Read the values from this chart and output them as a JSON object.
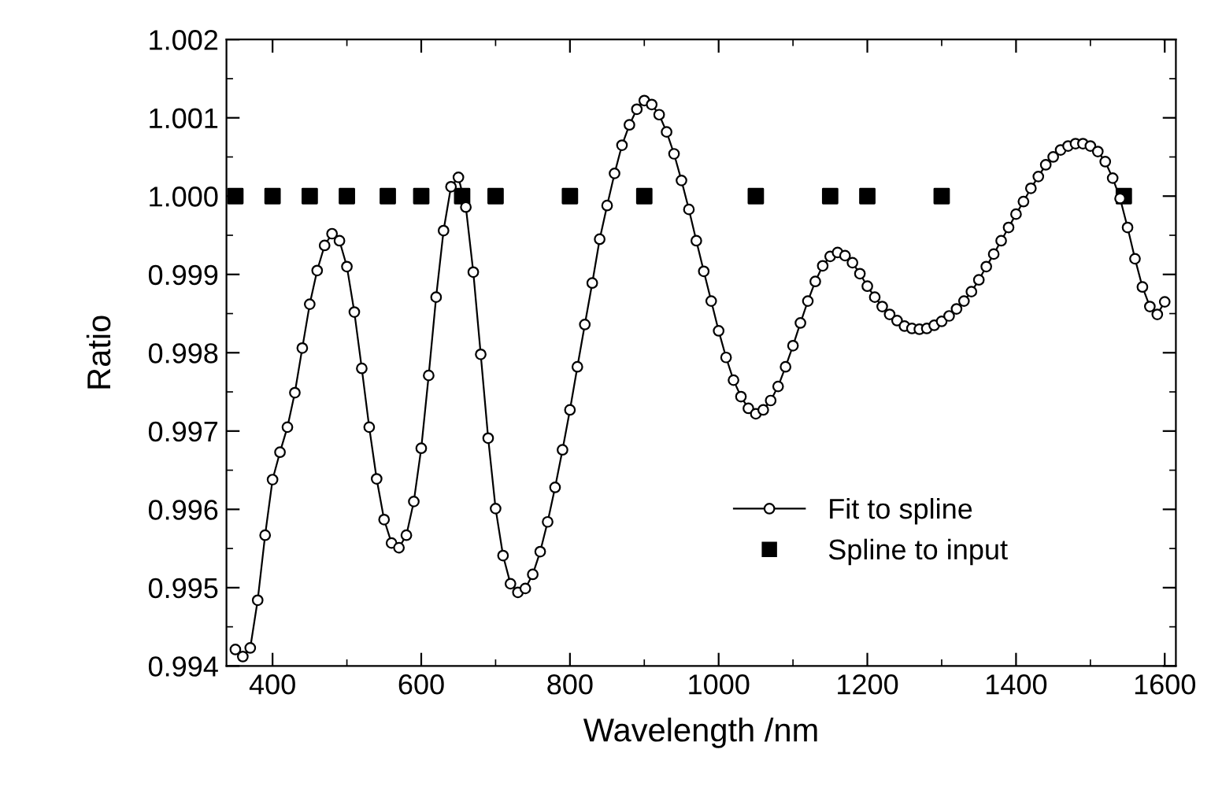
{
  "chart_data": {
    "type": "line",
    "xlabel": "Wavelength /nm",
    "ylabel": "Ratio",
    "xlim": [
      338,
      1615
    ],
    "ylim": [
      0.994,
      1.002
    ],
    "xticks": [
      400,
      600,
      800,
      1000,
      1200,
      1400,
      1600
    ],
    "yticks": [
      {
        "value": 0.994,
        "label": "0.994"
      },
      {
        "value": 0.995,
        "label": "0.995"
      },
      {
        "value": 0.996,
        "label": "0.996"
      },
      {
        "value": 0.997,
        "label": "0.997"
      },
      {
        "value": 0.998,
        "label": "0.998"
      },
      {
        "value": 0.999,
        "label": "0.999"
      },
      {
        "value": 1.0,
        "label": "1.000"
      },
      {
        "value": 1.001,
        "label": "1.001"
      },
      {
        "value": 1.002,
        "label": "1.002"
      }
    ],
    "grid": false,
    "legend": "bottom right",
    "series": [
      {
        "name": "Fit to spline",
        "marker": "circle",
        "line_style": "solid",
        "color": "#000000",
        "x": [
          350,
          360,
          370,
          380,
          390,
          400,
          410,
          420,
          430,
          440,
          450,
          460,
          470,
          480,
          490,
          500,
          510,
          520,
          530,
          540,
          550,
          560,
          570,
          580,
          590,
          600,
          610,
          620,
          630,
          640,
          650,
          660,
          670,
          680,
          690,
          700,
          710,
          720,
          730,
          740,
          750,
          760,
          770,
          780,
          790,
          800,
          810,
          820,
          830,
          840,
          850,
          860,
          870,
          880,
          890,
          900,
          910,
          920,
          930,
          940,
          950,
          960,
          970,
          980,
          990,
          1000,
          1010,
          1020,
          1030,
          1040,
          1050,
          1060,
          1070,
          1080,
          1090,
          1100,
          1110,
          1120,
          1130,
          1140,
          1150,
          1160,
          1170,
          1180,
          1190,
          1200,
          1210,
          1220,
          1230,
          1240,
          1250,
          1260,
          1270,
          1280,
          1290,
          1300,
          1310,
          1320,
          1330,
          1340,
          1350,
          1360,
          1370,
          1380,
          1390,
          1400,
          1410,
          1420,
          1430,
          1440,
          1450,
          1460,
          1470,
          1480,
          1490,
          1500,
          1510,
          1520,
          1530,
          1540,
          1550,
          1560,
          1570,
          1580,
          1590,
          1600
        ],
        "values": [
          0.99421,
          0.99412,
          0.99423,
          0.99484,
          0.99567,
          0.99638,
          0.99673,
          0.99705,
          0.99749,
          0.99806,
          0.99862,
          0.99905,
          0.99937,
          0.99952,
          0.99943,
          0.9991,
          0.99852,
          0.9978,
          0.99705,
          0.99639,
          0.99587,
          0.99557,
          0.99551,
          0.99567,
          0.9961,
          0.99678,
          0.99771,
          0.99871,
          0.99956,
          1.00012,
          1.00024,
          0.99986,
          0.99903,
          0.99798,
          0.99691,
          0.99601,
          0.99541,
          0.99505,
          0.99494,
          0.99499,
          0.99517,
          0.99546,
          0.99584,
          0.99628,
          0.99676,
          0.99727,
          0.99782,
          0.99836,
          0.99889,
          0.99945,
          0.99988,
          1.00029,
          1.00065,
          1.00091,
          1.00111,
          1.00122,
          1.00117,
          1.00104,
          1.00082,
          1.00054,
          1.0002,
          0.99983,
          0.99943,
          0.99904,
          0.99866,
          0.99828,
          0.99794,
          0.99765,
          0.99744,
          0.99729,
          0.99722,
          0.99727,
          0.99739,
          0.99757,
          0.99782,
          0.99809,
          0.99838,
          0.99866,
          0.99891,
          0.99911,
          0.99923,
          0.99928,
          0.99924,
          0.99915,
          0.99901,
          0.99885,
          0.99871,
          0.99859,
          0.99849,
          0.99841,
          0.99834,
          0.99831,
          0.9983,
          0.99831,
          0.99835,
          0.9984,
          0.99847,
          0.99856,
          0.99866,
          0.99878,
          0.99893,
          0.9991,
          0.99926,
          0.99943,
          0.9996,
          0.99977,
          0.99993,
          1.0001,
          1.00025,
          1.0004,
          1.0005,
          1.00059,
          1.00064,
          1.00067,
          1.00067,
          1.00064,
          1.00057,
          1.00044,
          1.00023,
          0.99997,
          0.9996,
          0.9992,
          0.99884,
          0.99859,
          0.99849,
          0.99865
        ]
      },
      {
        "name": "Spline to input",
        "type": "scatter",
        "marker": "square",
        "color": "#000000",
        "x": [
          350,
          400,
          450,
          500,
          555,
          600,
          655,
          700,
          800,
          900,
          1050,
          1150,
          1200,
          1300,
          1545
        ],
        "values": [
          1.0,
          1.0,
          1.0,
          1.0,
          1.0,
          1.0,
          1.0,
          1.0,
          1.0,
          1.0,
          1.0,
          1.0,
          1.0,
          1.0,
          1.0
        ]
      }
    ]
  }
}
